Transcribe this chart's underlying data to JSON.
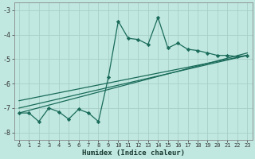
{
  "xlabel": "Humidex (Indice chaleur)",
  "bg_color": "#c0e8e0",
  "grid_color": "#a0ccC4",
  "line_color": "#1a6b5a",
  "marker_color": "#1a6b5a",
  "xlim": [
    -0.5,
    23.5
  ],
  "ylim": [
    -8.3,
    -2.7
  ],
  "xticks": [
    0,
    1,
    2,
    3,
    4,
    5,
    6,
    7,
    8,
    9,
    10,
    11,
    12,
    13,
    14,
    15,
    16,
    17,
    18,
    19,
    20,
    21,
    22,
    23
  ],
  "yticks": [
    -8,
    -7,
    -6,
    -5,
    -4,
    -3
  ],
  "line1_x": [
    0,
    1,
    2,
    3,
    4,
    5,
    6,
    7,
    8,
    9,
    10,
    11,
    12,
    13,
    14,
    15,
    16,
    17,
    18,
    19,
    20,
    21,
    22,
    23
  ],
  "line1_y": [
    -7.2,
    -7.2,
    -7.55,
    -7.0,
    -7.15,
    -7.45,
    -7.05,
    -7.2,
    -7.55,
    -5.75,
    -3.45,
    -4.15,
    -4.2,
    -4.4,
    -3.3,
    -4.55,
    -4.35,
    -4.6,
    -4.65,
    -4.75,
    -4.85,
    -4.85,
    -4.9,
    -4.85
  ],
  "line2_x": [
    0,
    23
  ],
  "line2_y": [
    -7.2,
    -4.75
  ],
  "line3_x": [
    0,
    23
  ],
  "line3_y": [
    -7.0,
    -4.85
  ],
  "line4_x": [
    0,
    23
  ],
  "line4_y": [
    -6.7,
    -4.85
  ]
}
